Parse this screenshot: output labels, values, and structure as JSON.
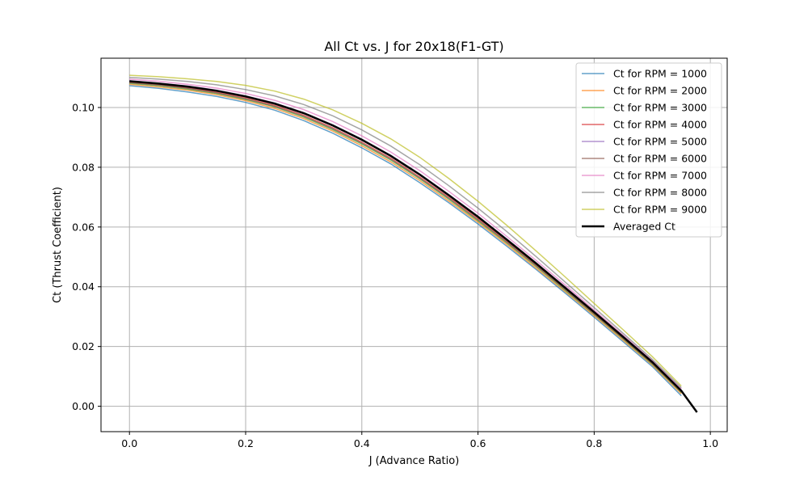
{
  "chart_data": {
    "type": "line",
    "title": "All Ct vs. J for 20x18(F1-GT)",
    "xlabel": "J (Advance Ratio)",
    "ylabel": "Ct (Thrust Coefficient)",
    "xlim": [
      -0.049,
      1.029
    ],
    "ylim": [
      -0.0085,
      0.1165
    ],
    "xticks": [
      "0.0",
      "0.2",
      "0.4",
      "0.6",
      "0.8",
      "1.0"
    ],
    "yticks": [
      "0.00",
      "0.02",
      "0.04",
      "0.06",
      "0.08",
      "0.10"
    ],
    "grid": true,
    "legend_position": "top-right",
    "x": [
      0.0,
      0.05,
      0.1,
      0.15,
      0.2,
      0.25,
      0.3,
      0.35,
      0.4,
      0.45,
      0.5,
      0.55,
      0.6,
      0.65,
      0.7,
      0.75,
      0.8,
      0.85,
      0.9,
      0.95
    ],
    "series": [
      {
        "name": "Ct for RPM = 1000",
        "color": "#1f77b4",
        "values": [
          0.1073,
          0.1064,
          0.1052,
          0.1037,
          0.1017,
          0.0991,
          0.0956,
          0.0914,
          0.0865,
          0.0811,
          0.0748,
          0.0681,
          0.061,
          0.0535,
          0.0458,
          0.0379,
          0.0298,
          0.0216,
          0.0133,
          0.0035
        ]
      },
      {
        "name": "Ct for RPM = 2000",
        "color": "#ff7f0e",
        "values": [
          0.1078,
          0.1069,
          0.1058,
          0.1043,
          0.1023,
          0.0997,
          0.0963,
          0.0921,
          0.0872,
          0.0818,
          0.0755,
          0.0687,
          0.0616,
          0.0541,
          0.0463,
          0.0384,
          0.0303,
          0.0221,
          0.0138,
          0.0042
        ]
      },
      {
        "name": "Ct for RPM = 3000",
        "color": "#2ca02c",
        "values": [
          0.1081,
          0.1073,
          0.1062,
          0.1047,
          0.1027,
          0.1002,
          0.0968,
          0.0926,
          0.0878,
          0.0824,
          0.0761,
          0.0693,
          0.0621,
          0.0546,
          0.0468,
          0.0388,
          0.0307,
          0.0225,
          0.0141,
          0.0046
        ]
      },
      {
        "name": "Ct for RPM = 4000",
        "color": "#d62728",
        "values": [
          0.1085,
          0.1077,
          0.1066,
          0.1051,
          0.1032,
          0.1007,
          0.0974,
          0.0932,
          0.0884,
          0.083,
          0.0767,
          0.0699,
          0.0627,
          0.0551,
          0.0473,
          0.0393,
          0.0311,
          0.0229,
          0.0145,
          0.005
        ]
      },
      {
        "name": "Ct for RPM = 5000",
        "color": "#9467bd",
        "values": [
          0.109,
          0.1082,
          0.1072,
          0.1058,
          0.1039,
          0.1015,
          0.0983,
          0.0942,
          0.0894,
          0.084,
          0.0777,
          0.0708,
          0.0636,
          0.0559,
          0.048,
          0.0399,
          0.0317,
          0.0234,
          0.015,
          0.0055
        ]
      },
      {
        "name": "Ct for RPM = 6000",
        "color": "#8c564b",
        "values": [
          0.1083,
          0.1075,
          0.1064,
          0.1049,
          0.1029,
          0.1004,
          0.0971,
          0.0929,
          0.0881,
          0.0827,
          0.0764,
          0.0696,
          0.0624,
          0.0549,
          0.0471,
          0.0391,
          0.0309,
          0.0227,
          0.0143,
          0.0048
        ]
      },
      {
        "name": "Ct for RPM = 7000",
        "color": "#e377c2",
        "values": [
          0.1095,
          0.1088,
          0.1078,
          0.1065,
          0.1047,
          0.1024,
          0.0993,
          0.0953,
          0.0905,
          0.0851,
          0.0788,
          0.0719,
          0.0646,
          0.0568,
          0.0488,
          0.0406,
          0.0322,
          0.0238,
          0.0153,
          0.0058
        ]
      },
      {
        "name": "Ct for RPM = 8000",
        "color": "#7f7f7f",
        "values": [
          0.1101,
          0.1095,
          0.1087,
          0.1076,
          0.106,
          0.1039,
          0.101,
          0.0972,
          0.0925,
          0.0871,
          0.0808,
          0.0738,
          0.0663,
          0.0584,
          0.0501,
          0.0416,
          0.033,
          0.0244,
          0.0157,
          0.0062
        ]
      },
      {
        "name": "Ct for RPM = 9000",
        "color": "#bcbd22",
        "values": [
          0.1108,
          0.1103,
          0.1096,
          0.1087,
          0.1074,
          0.1055,
          0.1028,
          0.0992,
          0.0947,
          0.0895,
          0.0833,
          0.0762,
          0.0686,
          0.0605,
          0.052,
          0.0433,
          0.0344,
          0.0256,
          0.0166,
          0.0068
        ]
      }
    ],
    "average": {
      "name": "Averaged Ct",
      "color": "#000000",
      "x": [
        0.0,
        0.05,
        0.1,
        0.15,
        0.2,
        0.25,
        0.3,
        0.35,
        0.4,
        0.45,
        0.5,
        0.55,
        0.6,
        0.65,
        0.7,
        0.75,
        0.8,
        0.85,
        0.9,
        0.95,
        0.977
      ],
      "values": [
        0.1088,
        0.108,
        0.107,
        0.1056,
        0.1037,
        0.1013,
        0.0981,
        0.094,
        0.0892,
        0.0838,
        0.0775,
        0.0706,
        0.0634,
        0.0557,
        0.0478,
        0.0397,
        0.0315,
        0.0232,
        0.0148,
        0.0052,
        -0.002
      ]
    }
  }
}
